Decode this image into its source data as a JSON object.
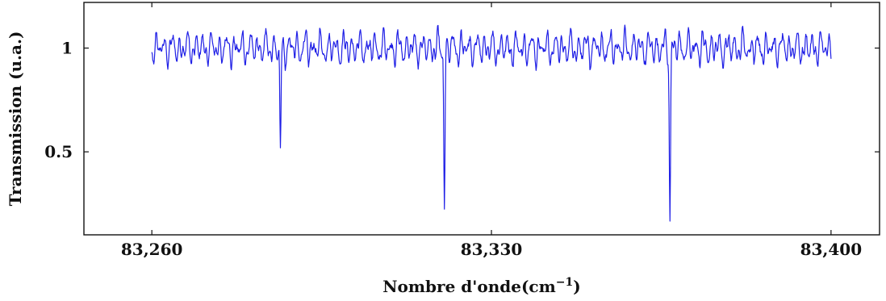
{
  "chart_data": {
    "type": "line",
    "title": "",
    "xlabel": "Nombre d'onde(cm",
    "xlabel_superscript": "−1",
    "xlabel_suffix": ")",
    "ylabel": "Transmission (u.a.)",
    "xlim": [
      83246,
      83410
    ],
    "ylim": [
      0.1,
      1.22
    ],
    "x_ticks": [
      83260,
      83330,
      83400
    ],
    "x_tick_labels": [
      "83,260",
      "83,330",
      "83,400"
    ],
    "y_ticks": [
      0.5,
      1
    ],
    "y_tick_labels": [
      "0.5",
      "1"
    ],
    "grid": false,
    "line_color": "#1f1fe6",
    "series": [
      {
        "x_start": 83260,
        "x_end": 83400,
        "baseline": 1.0,
        "ripple_amplitude": 0.1,
        "dips": [
          {
            "x": 83286.5,
            "min": 0.48
          },
          {
            "x": 83320.3,
            "min": 0.22
          },
          {
            "x": 83366.8,
            "min": 0.19
          }
        ]
      }
    ]
  }
}
